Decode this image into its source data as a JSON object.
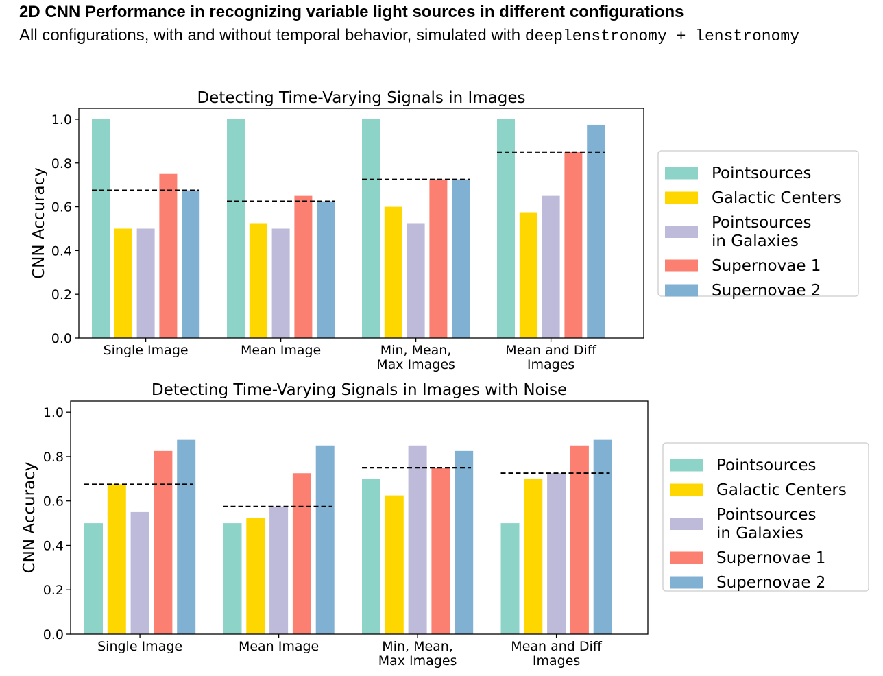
{
  "header": {
    "title": "2D CNN Performance in recognizing variable light sources in different configurations",
    "subtitle_text": "All configurations, with and without temporal behavior, simulated with",
    "subtitle_code": "deeplenstronomy + lenstronomy"
  },
  "colors": {
    "Pointsources": "#8dd3c7",
    "Galactic Centers": "#ffd700",
    "Pointsources in Galaxies": "#bebada",
    "Supernovae 1": "#fb8072",
    "Supernovae 2": "#80b1d3"
  },
  "chart_data": [
    {
      "type": "bar",
      "title": "Detecting Time-Varying Signals in Images",
      "xlabel": "",
      "ylabel": "CNN Accuracy",
      "ylim": [
        0,
        1.05
      ],
      "yticks": [
        "0.0",
        "0.2",
        "0.4",
        "0.6",
        "0.8",
        "1.0"
      ],
      "categories": [
        [
          "Single Image"
        ],
        [
          "Mean Image"
        ],
        [
          "Min, Mean,",
          "Max Images"
        ],
        [
          "Mean and Diff",
          "Images"
        ]
      ],
      "legend": {
        "placement": "right",
        "entries": [
          [
            "Pointsources"
          ],
          [
            "Galactic Centers"
          ],
          [
            "Pointsources",
            "in Galaxies"
          ],
          [
            "Supernovae 1"
          ],
          [
            "Supernovae 2"
          ]
        ]
      },
      "series": [
        {
          "name": "Pointsources",
          "values": [
            1.0,
            1.0,
            1.0,
            1.0
          ]
        },
        {
          "name": "Galactic Centers",
          "values": [
            0.5,
            0.525,
            0.6,
            0.575
          ]
        },
        {
          "name": "Pointsources in Galaxies",
          "values": [
            0.5,
            0.5,
            0.525,
            0.65
          ]
        },
        {
          "name": "Supernovae 1",
          "values": [
            0.75,
            0.65,
            0.725,
            0.85
          ]
        },
        {
          "name": "Supernovae 2",
          "values": [
            0.675,
            0.625,
            0.725,
            0.975
          ]
        }
      ],
      "mean_lines": [
        0.675,
        0.625,
        0.725,
        0.85
      ],
      "grid": false
    },
    {
      "type": "bar",
      "title": "Detecting Time-Varying Signals in Images with Noise",
      "xlabel": "",
      "ylabel": "CNN Accuracy",
      "ylim": [
        0,
        1.05
      ],
      "yticks": [
        "0.0",
        "0.2",
        "0.4",
        "0.6",
        "0.8",
        "1.0"
      ],
      "categories": [
        [
          "Single Image"
        ],
        [
          "Mean Image"
        ],
        [
          "Min, Mean,",
          "Max Images"
        ],
        [
          "Mean and Diff",
          "Images"
        ]
      ],
      "legend": {
        "placement": "right",
        "entries": [
          [
            "Pointsources"
          ],
          [
            "Galactic Centers"
          ],
          [
            "Pointsources",
            "in Galaxies"
          ],
          [
            "Supernovae 1"
          ],
          [
            "Supernovae 2"
          ]
        ]
      },
      "series": [
        {
          "name": "Pointsources",
          "values": [
            0.5,
            0.5,
            0.7,
            0.5
          ]
        },
        {
          "name": "Galactic Centers",
          "values": [
            0.675,
            0.525,
            0.625,
            0.7
          ]
        },
        {
          "name": "Pointsources in Galaxies",
          "values": [
            0.55,
            0.575,
            0.85,
            0.725
          ]
        },
        {
          "name": "Supernovae 1",
          "values": [
            0.825,
            0.725,
            0.75,
            0.85
          ]
        },
        {
          "name": "Supernovae 2",
          "values": [
            0.875,
            0.85,
            0.825,
            0.875
          ]
        }
      ],
      "mean_lines": [
        0.675,
        0.575,
        0.75,
        0.725
      ],
      "grid": false
    }
  ]
}
